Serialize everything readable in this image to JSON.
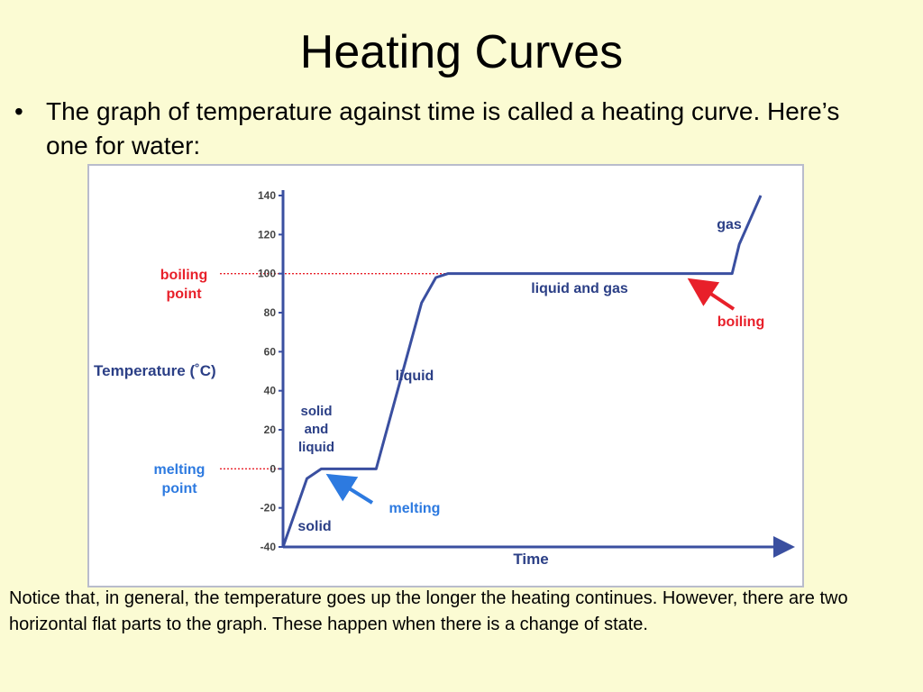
{
  "slide": {
    "title": "Heating Curves",
    "bullet_marker": "•",
    "bullet": "The graph of temperature against time is called a heating curve. Here’s one for water:",
    "note": "Notice that, in general, the temperature goes up the longer the heating continues. However, there are two horizontal flat parts to the graph. These happen when there is a change of state."
  },
  "chart_data": {
    "type": "line",
    "ylabel": "Temperature (˚C)",
    "xlabel": "Time",
    "ylim": [
      -40,
      140
    ],
    "y_ticks": [
      140,
      120,
      100,
      80,
      60,
      40,
      20,
      0,
      -20,
      -40
    ],
    "curve": [
      {
        "t": 0,
        "temp": -40
      },
      {
        "t": 0.05,
        "temp": -5
      },
      {
        "t": 0.08,
        "temp": 0
      },
      {
        "t": 0.12,
        "temp": 0
      },
      {
        "t": 0.195,
        "temp": 0
      },
      {
        "t": 0.29,
        "temp": 85
      },
      {
        "t": 0.32,
        "temp": 98
      },
      {
        "t": 0.345,
        "temp": 100
      },
      {
        "t": 0.94,
        "temp": 100
      },
      {
        "t": 0.955,
        "temp": 115
      },
      {
        "t": 1.0,
        "temp": 140
      }
    ],
    "annotations": {
      "boiling_point": "boiling\npoint",
      "melting_point": "melting\npoint",
      "gas": "gas",
      "liquid_and_gas": "liquid and gas",
      "boiling": "boiling",
      "liquid": "liquid",
      "solid_and_liquid": "solid\nand\nliquid",
      "melting": "melting",
      "solid": "solid"
    },
    "colors": {
      "curve": "#3a4fa0",
      "axis": "#3a4fa0",
      "text": "#2b3f86",
      "red": "#e8202a",
      "blue": "#2d7ae0"
    }
  }
}
